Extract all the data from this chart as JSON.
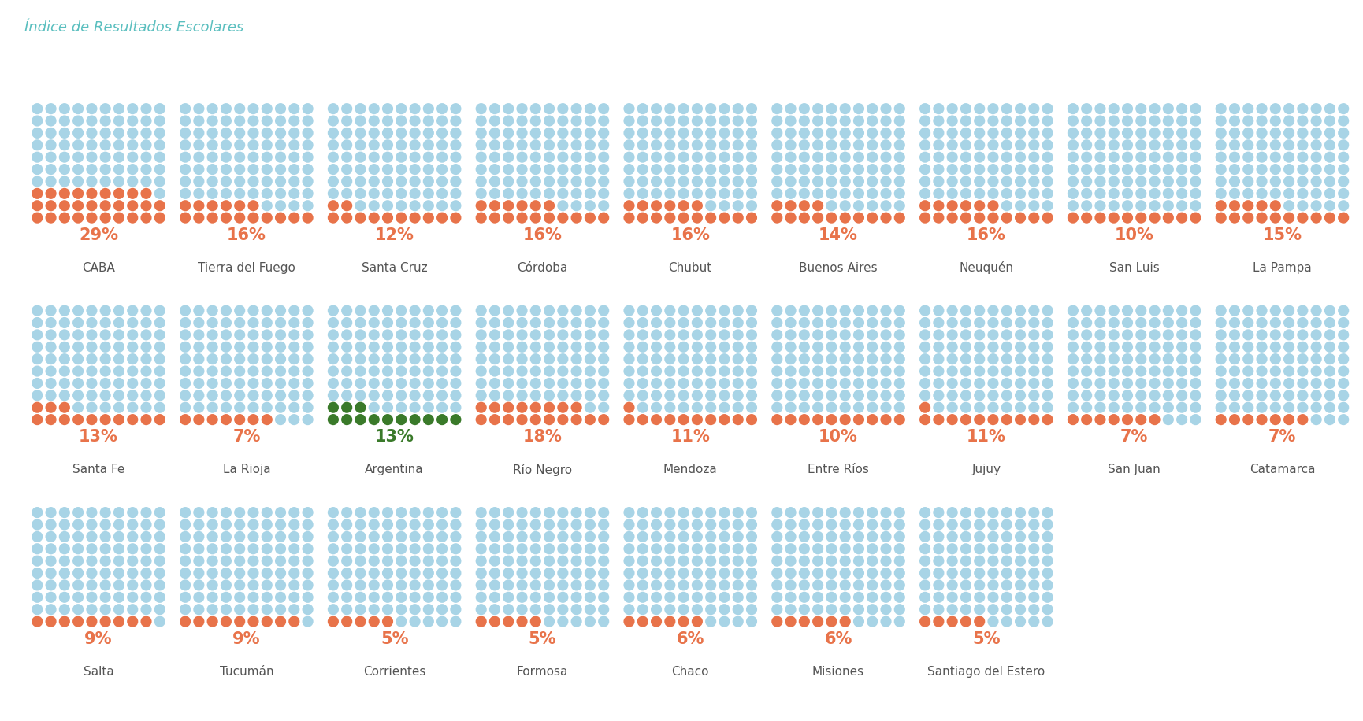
{
  "title": "Índice de Resultados Escolares",
  "title_color": "#5bbfbf",
  "background_color": "#ffffff",
  "dot_color_blue": "#a8d4e6",
  "dot_color_orange": "#e8734a",
  "dot_color_green": "#3a7a2a",
  "rows": [
    [
      {
        "label": "CABA",
        "pct": 29,
        "color": "orange"
      },
      {
        "label": "Tierra del Fuego",
        "pct": 16,
        "color": "orange"
      },
      {
        "label": "Santa Cruz",
        "pct": 12,
        "color": "orange"
      },
      {
        "label": "Córdoba",
        "pct": 16,
        "color": "orange"
      },
      {
        "label": "Chubut",
        "pct": 16,
        "color": "orange"
      },
      {
        "label": "Buenos Aires",
        "pct": 14,
        "color": "orange"
      },
      {
        "label": "Neuquén",
        "pct": 16,
        "color": "orange"
      },
      {
        "label": "San Luis",
        "pct": 10,
        "color": "orange"
      },
      {
        "label": "La Pampa",
        "pct": 15,
        "color": "orange"
      }
    ],
    [
      {
        "label": "Santa Fe",
        "pct": 13,
        "color": "orange"
      },
      {
        "label": "La Rioja",
        "pct": 7,
        "color": "orange"
      },
      {
        "label": "Argentina",
        "pct": 13,
        "color": "green"
      },
      {
        "label": "Río Negro",
        "pct": 18,
        "color": "orange"
      },
      {
        "label": "Mendoza",
        "pct": 11,
        "color": "orange"
      },
      {
        "label": "Entre Ríos",
        "pct": 10,
        "color": "orange"
      },
      {
        "label": "Jujuy",
        "pct": 11,
        "color": "orange"
      },
      {
        "label": "San Juan",
        "pct": 7,
        "color": "orange"
      },
      {
        "label": "Catamarca",
        "pct": 7,
        "color": "orange"
      }
    ],
    [
      {
        "label": "Salta",
        "pct": 9,
        "color": "orange"
      },
      {
        "label": "Tucumán",
        "pct": 9,
        "color": "orange"
      },
      {
        "label": "Corrientes",
        "pct": 5,
        "color": "orange"
      },
      {
        "label": "Formosa",
        "pct": 5,
        "color": "orange"
      },
      {
        "label": "Chaco",
        "pct": 6,
        "color": "orange"
      },
      {
        "label": "Misiones",
        "pct": 6,
        "color": "orange"
      },
      {
        "label": "Santiago del Estero",
        "pct": 5,
        "color": "orange"
      }
    ]
  ],
  "grid_cols": 10,
  "grid_rows": 10,
  "pct_fontsize": 15,
  "label_fontsize": 11,
  "pct_color_orange": "#e8734a",
  "pct_color_green": "#3a7a2a",
  "label_color": "#555555",
  "title_fontsize": 13
}
